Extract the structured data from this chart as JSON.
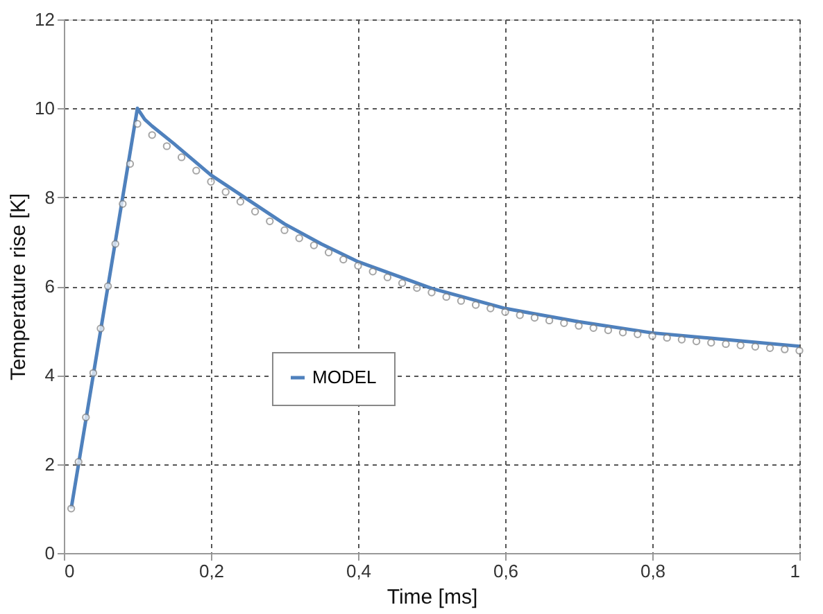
{
  "chart_data": {
    "type": "line",
    "xlabel": "Time [ms]",
    "ylabel": "Temperature rise [K]",
    "xlim": [
      0,
      1
    ],
    "ylim": [
      0,
      12
    ],
    "xticks": [
      0,
      {
        "value": 0.2,
        "label": "0,2"
      },
      {
        "value": 0.4,
        "label": "0,4"
      },
      {
        "value": 0.6,
        "label": "0,6"
      },
      {
        "value": 0.8,
        "label": "0,8"
      },
      1
    ],
    "yticks": [
      0,
      2,
      4,
      6,
      8,
      10,
      12
    ],
    "grid": true,
    "legend": "left",
    "series": [
      {
        "type": "scatter",
        "marker": "circle",
        "color": "#808080",
        "x": [
          0.01,
          0.02,
          0.03,
          0.04,
          0.05,
          0.06,
          0.07,
          0.08,
          0.09,
          0.1,
          0.12,
          0.14,
          0.16,
          0.18,
          0.2,
          0.22,
          0.24,
          0.26,
          0.28,
          0.3,
          0.32,
          0.34,
          0.36,
          0.38,
          0.4,
          0.42,
          0.44,
          0.46,
          0.48,
          0.5,
          0.52,
          0.54,
          0.56,
          0.58,
          0.6,
          0.62,
          0.64,
          0.66,
          0.68,
          0.7,
          0.72,
          0.74,
          0.76,
          0.78,
          0.8,
          0.82,
          0.84,
          0.86,
          0.88,
          0.9,
          0.92,
          0.94,
          0.96,
          0.98,
          1.0
        ],
        "values": [
          1.0,
          2.05,
          3.05,
          4.05,
          5.05,
          6.0,
          6.95,
          7.85,
          8.75,
          9.65,
          9.4,
          9.15,
          8.9,
          8.6,
          8.35,
          8.12,
          7.9,
          7.68,
          7.46,
          7.26,
          7.08,
          6.92,
          6.76,
          6.6,
          6.46,
          6.33,
          6.2,
          6.07,
          5.96,
          5.86,
          5.76,
          5.67,
          5.58,
          5.5,
          5.42,
          5.35,
          5.29,
          5.23,
          5.17,
          5.11,
          5.06,
          5.01,
          4.96,
          4.92,
          4.88,
          4.84,
          4.8,
          4.76,
          4.73,
          4.7,
          4.67,
          4.64,
          4.61,
          4.58,
          4.55
        ]
      },
      {
        "type": "line",
        "name": "MODEL",
        "color": "#4f81bd",
        "line_style": "solid",
        "x": [
          0.01,
          0.1,
          0.11,
          0.12,
          0.15,
          0.2,
          0.25,
          0.3,
          0.35,
          0.4,
          0.5,
          0.6,
          0.7,
          0.8,
          0.9,
          1.0
        ],
        "values": [
          1,
          10,
          9.75,
          9.6,
          9.2,
          8.5,
          7.95,
          7.4,
          6.95,
          6.55,
          5.95,
          5.5,
          5.2,
          4.95,
          4.8,
          4.65
        ]
      }
    ]
  }
}
